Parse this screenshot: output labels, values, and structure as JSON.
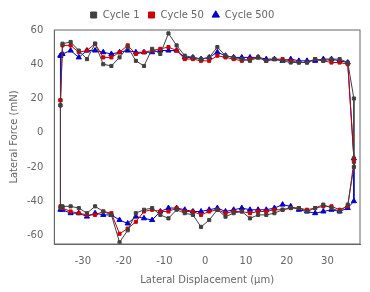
{
  "chart_data": {
    "type": "line",
    "xlabel": "Lateral Displacement (μm)",
    "ylabel": "Lateral Force (mN)",
    "xlim": [
      -37,
      38
    ],
    "ylim": [
      -65,
      60
    ],
    "xticks": [
      -30,
      -20,
      -10,
      0,
      10,
      20,
      30
    ],
    "yticks": [
      -60,
      -40,
      -20,
      0,
      20,
      40,
      60
    ],
    "grid": false,
    "legend": "top",
    "series": [
      {
        "name": "Cycle 1",
        "color": "#404040",
        "marker": "square",
        "x": [
          -35.5,
          -35,
          -33,
          -31,
          -29,
          -27,
          -25,
          -23,
          -21,
          -19,
          -17,
          -15,
          -13,
          -11,
          -9,
          -7,
          -5,
          -3,
          -1,
          1,
          3,
          5,
          7,
          9,
          11,
          13,
          15,
          17,
          19,
          21,
          23,
          25,
          27,
          29,
          31,
          33,
          35,
          36.5
        ],
        "values_top": [
          16,
          52,
          53,
          48,
          43,
          52,
          40,
          39,
          44,
          50,
          42,
          39,
          49,
          46,
          58,
          51,
          45,
          44,
          43,
          44,
          50,
          45,
          44,
          43,
          42,
          44,
          42,
          43,
          42,
          41,
          41,
          41,
          43,
          42,
          43,
          43,
          41,
          20
        ],
        "values_bottom": [
          -44,
          -43,
          -43,
          -44,
          -47,
          -43,
          -46,
          -48,
          -64,
          -57,
          -47,
          -45,
          -44,
          -48,
          -50,
          -45,
          -47,
          -48,
          -55,
          -51,
          -45,
          -49,
          -47,
          -46,
          -50,
          -48,
          -48,
          -47,
          -45,
          -44,
          -44,
          -46,
          -44,
          -42,
          -44,
          -46,
          -42,
          -20
        ]
      },
      {
        "name": "Cycle 50",
        "color": "#cc0000",
        "marker": "square",
        "x": [
          -35.5,
          -35,
          -33,
          -31,
          -29,
          -27,
          -25,
          -23,
          -21,
          -19,
          -17,
          -15,
          -13,
          -11,
          -9,
          -7,
          -5,
          -3,
          -1,
          1,
          3,
          5,
          7,
          9,
          11,
          13,
          15,
          17,
          19,
          21,
          23,
          25,
          27,
          29,
          31,
          33,
          35,
          36.5
        ],
        "values_top": [
          19,
          51,
          51,
          47,
          48,
          52,
          44,
          44,
          47,
          51,
          46,
          47,
          48,
          49,
          50,
          48,
          43,
          43,
          42,
          42,
          45,
          44,
          43,
          42,
          43,
          44,
          42,
          43,
          43,
          42,
          41,
          41,
          43,
          42,
          41,
          41,
          40,
          -15
        ],
        "values_bottom": [
          -43,
          -44,
          -46,
          -47,
          -48,
          -48,
          -46,
          -47,
          -59,
          -56,
          -52,
          -46,
          -45,
          -46,
          -46,
          -44,
          -46,
          -46,
          -48,
          -46,
          -45,
          -47,
          -46,
          -46,
          -47,
          -46,
          -46,
          -45,
          -45,
          -44,
          -44,
          -45,
          -44,
          -43,
          -43,
          -45,
          -43,
          -17
        ]
      },
      {
        "name": "Cycle 500",
        "color": "#0000cc",
        "marker": "triangle",
        "x": [
          -35.5,
          -35,
          -33,
          -31,
          -29,
          -27,
          -25,
          -23,
          -21,
          -19,
          -17,
          -15,
          -13,
          -11,
          -9,
          -7,
          -5,
          -3,
          -1,
          1,
          3,
          5,
          7,
          9,
          11,
          13,
          15,
          17,
          19,
          21,
          23,
          25,
          27,
          29,
          31,
          33,
          35,
          36.5
        ],
        "values_top": [
          45,
          46,
          48,
          44,
          48,
          48,
          47,
          46,
          47,
          48,
          47,
          47,
          47,
          48,
          48,
          48,
          44,
          44,
          43,
          44,
          47,
          45,
          44,
          44,
          44,
          44,
          43,
          43,
          42,
          43,
          42,
          42,
          42,
          43,
          43,
          42,
          41,
          -15
        ],
        "values_bottom": [
          -45,
          -45,
          -47,
          -47,
          -49,
          -47,
          -48,
          -48,
          -51,
          -53,
          -49,
          -50,
          -51,
          -46,
          -44,
          -44,
          -45,
          -46,
          -46,
          -45,
          -44,
          -46,
          -45,
          -44,
          -45,
          -45,
          -45,
          -44,
          -42,
          -43,
          -45,
          -46,
          -47,
          -46,
          -45,
          -46,
          -44,
          -40
        ]
      }
    ]
  }
}
